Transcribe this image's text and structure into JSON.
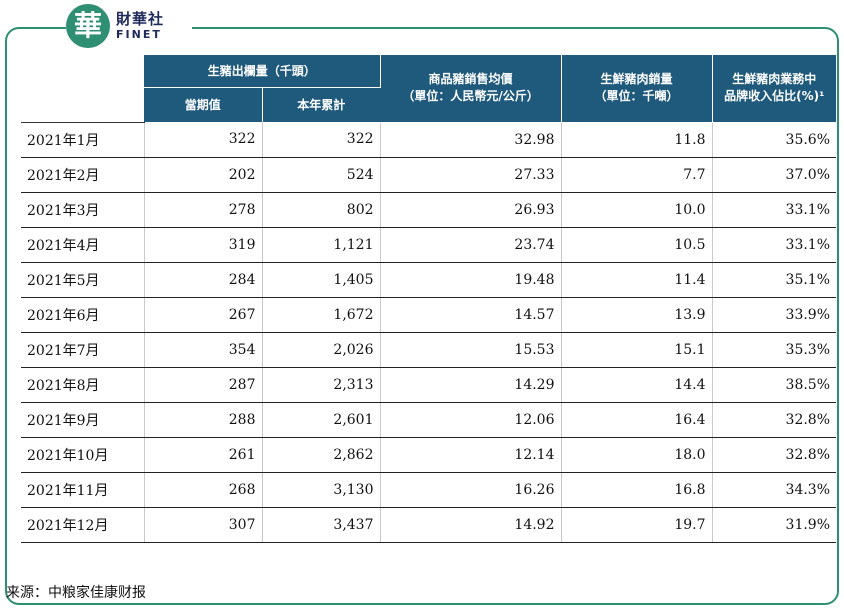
{
  "logo": {
    "mark": "華",
    "cn": "財華社",
    "en": "FINET"
  },
  "table": {
    "headers": {
      "group": "生豬出欄量（千頭）",
      "sub_current": "當期值",
      "sub_ytd": "本年累計",
      "price_line1": "商品豬銷售均價",
      "price_line2": "（單位：人民幣元/公斤）",
      "pork_line1": "生鮮豬肉銷量",
      "pork_line2": "（單位：千噸）",
      "brand_line1": "生鮮豬肉業務中",
      "brand_line2": "品牌收入佔比(%)¹"
    },
    "rows": [
      {
        "month": "2021年1月",
        "current": "322",
        "ytd": "322",
        "price": "32.98",
        "volume": "11.8",
        "brand": "35.6%"
      },
      {
        "month": "2021年2月",
        "current": "202",
        "ytd": "524",
        "price": "27.33",
        "volume": "7.7",
        "brand": "37.0%"
      },
      {
        "month": "2021年3月",
        "current": "278",
        "ytd": "802",
        "price": "26.93",
        "volume": "10.0",
        "brand": "33.1%"
      },
      {
        "month": "2021年4月",
        "current": "319",
        "ytd": "1,121",
        "price": "23.74",
        "volume": "10.5",
        "brand": "33.1%"
      },
      {
        "month": "2021年5月",
        "current": "284",
        "ytd": "1,405",
        "price": "19.48",
        "volume": "11.4",
        "brand": "35.1%"
      },
      {
        "month": "2021年6月",
        "current": "267",
        "ytd": "1,672",
        "price": "14.57",
        "volume": "13.9",
        "brand": "33.9%"
      },
      {
        "month": "2021年7月",
        "current": "354",
        "ytd": "2,026",
        "price": "15.53",
        "volume": "15.1",
        "brand": "35.3%"
      },
      {
        "month": "2021年8月",
        "current": "287",
        "ytd": "2,313",
        "price": "14.29",
        "volume": "14.4",
        "brand": "38.5%"
      },
      {
        "month": "2021年9月",
        "current": "288",
        "ytd": "2,601",
        "price": "12.06",
        "volume": "16.4",
        "brand": "32.8%"
      },
      {
        "month": "2021年10月",
        "current": "261",
        "ytd": "2,862",
        "price": "12.14",
        "volume": "18.0",
        "brand": "32.8%"
      },
      {
        "month": "2021年11月",
        "current": "268",
        "ytd": "3,130",
        "price": "16.26",
        "volume": "16.8",
        "brand": "34.3%"
      },
      {
        "month": "2021年12月",
        "current": "307",
        "ytd": "3,437",
        "price": "14.92",
        "volume": "19.7",
        "brand": "31.9%"
      }
    ]
  },
  "source": "来源：中粮家佳康财报",
  "colors": {
    "header_bg": "#1f5a7d",
    "frame": "#2f8f73"
  }
}
